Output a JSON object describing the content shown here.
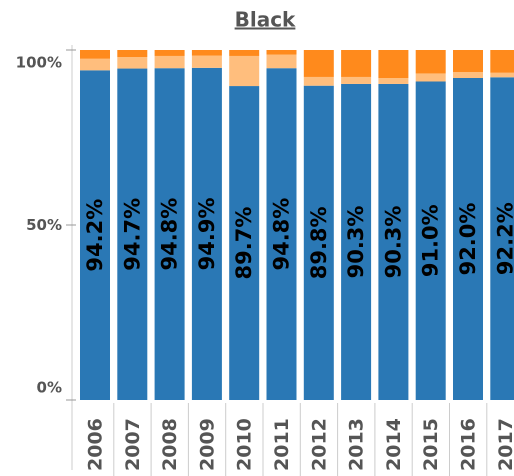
{
  "chart_data": {
    "type": "stacked_bar",
    "title": "Black",
    "categories": [
      "2006",
      "2007",
      "2008",
      "2009",
      "2010",
      "2011",
      "2012",
      "2013",
      "2014",
      "2015",
      "2016",
      "2017"
    ],
    "series": [
      {
        "color": "#2a78b5",
        "values": [
          94.2,
          94.7,
          94.8,
          94.9,
          89.7,
          94.8,
          89.8,
          90.3,
          90.3,
          91.0,
          92.0,
          92.2
        ],
        "value_labels": [
          "94.2%",
          "94.7%",
          "94.8%",
          "94.9%",
          "89.7%",
          "94.8%",
          "89.8%",
          "90.3%",
          "90.3%",
          "91.0%",
          "92.0%",
          "92.2%"
        ]
      },
      {
        "color": "#ffbe7d",
        "values": [
          3.3,
          3.3,
          3.5,
          3.5,
          8.6,
          3.9,
          2.5,
          2.0,
          1.7,
          2.3,
          1.7,
          1.3
        ]
      },
      {
        "color": "#ff8a1c",
        "values": [
          2.5,
          2.0,
          1.7,
          1.6,
          1.7,
          1.3,
          7.7,
          7.7,
          8.0,
          6.7,
          6.3,
          6.5
        ]
      }
    ],
    "ylim": [
      0,
      100
    ],
    "yticks": [
      {
        "value": 0,
        "label": "0%"
      },
      {
        "value": 50,
        "label": "50%"
      },
      {
        "value": 100,
        "label": "100%"
      }
    ]
  }
}
